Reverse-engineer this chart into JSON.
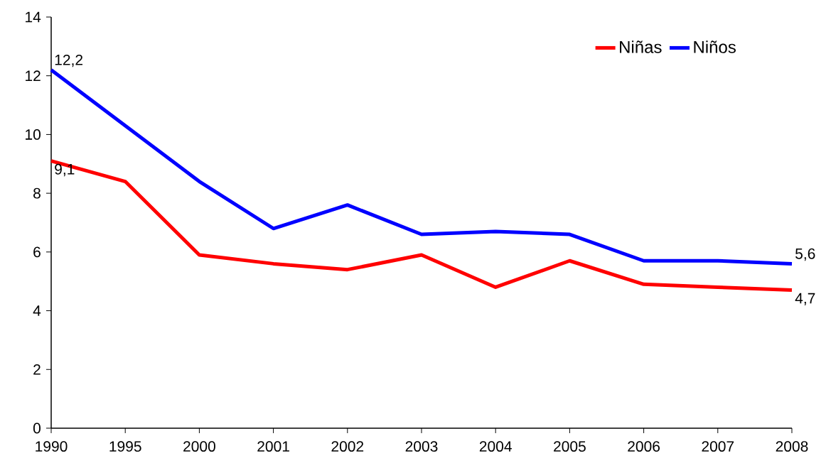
{
  "chart_data": {
    "type": "line",
    "categories": [
      "1990",
      "1995",
      "2000",
      "2001",
      "2002",
      "2003",
      "2004",
      "2005",
      "2006",
      "2007",
      "2008"
    ],
    "series": [
      {
        "name": "Niñas",
        "color": "#ff0000",
        "values": [
          9.1,
          8.4,
          5.9,
          5.6,
          5.4,
          5.9,
          4.8,
          5.7,
          4.9,
          4.8,
          4.7
        ],
        "value_labels": [
          "9,1",
          null,
          null,
          null,
          null,
          null,
          null,
          null,
          null,
          null,
          "4,7"
        ]
      },
      {
        "name": "Niños",
        "color": "#0000ff",
        "values": [
          12.2,
          10.3,
          8.4,
          6.8,
          7.6,
          6.6,
          6.7,
          6.6,
          5.7,
          5.7,
          5.6
        ],
        "value_labels": [
          "12,2",
          null,
          null,
          null,
          null,
          null,
          null,
          null,
          null,
          null,
          "5,6"
        ]
      }
    ],
    "ylim": [
      0,
      14
    ],
    "yticks": [
      0,
      2,
      4,
      6,
      8,
      10,
      12,
      14
    ],
    "grid": false,
    "legend": "top right",
    "marker": "none",
    "line_style": "solid"
  }
}
